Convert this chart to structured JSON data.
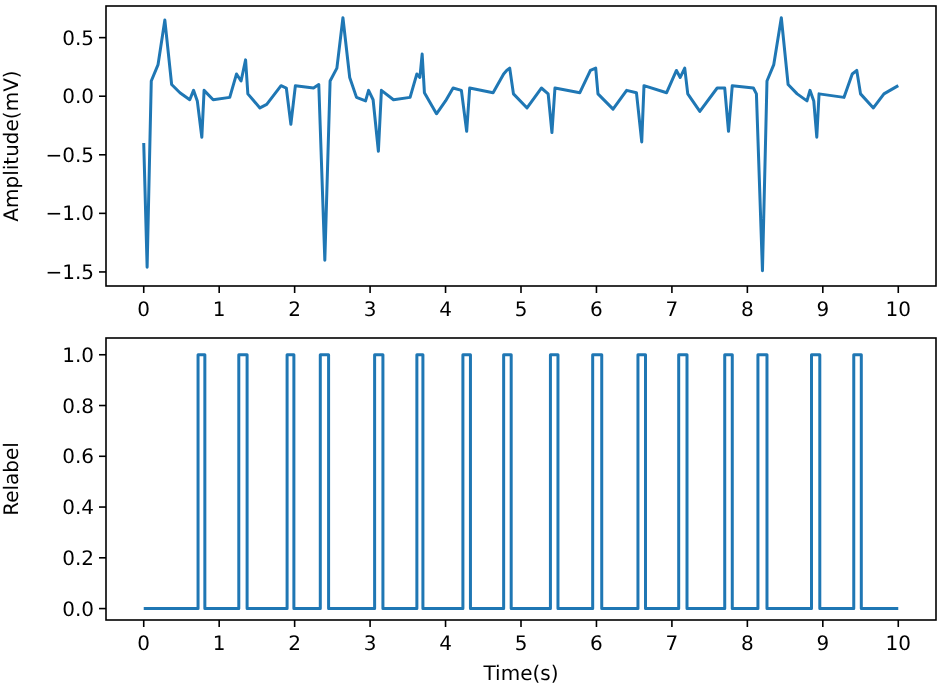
{
  "chart_data": [
    {
      "type": "line",
      "ylabel": "Amplitude(mV)",
      "xlim": [
        -0.5,
        10.5
      ],
      "ylim": [
        -1.62,
        0.77
      ],
      "xticks": [
        0,
        1,
        2,
        3,
        4,
        5,
        6,
        7,
        8,
        9,
        10
      ],
      "yticks": [
        {
          "value": 0.5,
          "label": "0.5"
        },
        {
          "value": 0,
          "label": "0.0"
        },
        {
          "value": -0.5,
          "label": "−0.5"
        },
        {
          "value": -1,
          "label": "−1.0"
        },
        {
          "value": -1.5,
          "label": "−1.5"
        }
      ],
      "grid": false,
      "series": [
        {
          "color": "#1f77b4",
          "x": [
            0,
            0.045,
            0.1,
            0.19,
            0.28,
            0.37,
            0.48,
            0.61,
            0.66,
            0.71,
            0.77,
            0.8,
            0.92,
            1.14,
            1.23,
            1.29,
            1.35,
            1.38,
            1.54,
            1.63,
            1.82,
            1.89,
            1.95,
            2.01,
            2.25,
            2.32,
            2.4,
            2.47,
            2.56,
            2.64,
            2.73,
            2.82,
            2.94,
            2.98,
            3.04,
            3.11,
            3.15,
            3.31,
            3.53,
            3.62,
            3.66,
            3.69,
            3.72,
            3.88,
            4.0,
            4.1,
            4.21,
            4.28,
            4.32,
            4.63,
            4.77,
            4.81,
            4.85,
            4.9,
            5.08,
            5.27,
            5.36,
            5.41,
            5.45,
            5.78,
            5.92,
            5.99,
            6.02,
            6.22,
            6.4,
            6.53,
            6.6,
            6.63,
            6.93,
            7.06,
            7.11,
            7.17,
            7.21,
            7.37,
            7.6,
            7.7,
            7.75,
            7.8,
            8.08,
            8.12,
            8.2,
            8.26,
            8.35,
            8.45,
            8.54,
            8.66,
            8.79,
            8.83,
            8.88,
            8.92,
            8.95,
            9.28,
            9.39,
            9.45,
            9.5,
            9.67,
            9.81,
            9.89,
            10.0
          ],
          "values": [
            -0.4,
            -1.46,
            0.13,
            0.27,
            0.65,
            0.1,
            0.03,
            -0.03,
            0.05,
            -0.04,
            -0.35,
            0.05,
            -0.03,
            -0.01,
            0.19,
            0.13,
            0.31,
            0.02,
            -0.1,
            -0.07,
            0.09,
            0.07,
            -0.24,
            0.09,
            0.07,
            0.1,
            -1.4,
            0.13,
            0.24,
            0.67,
            0.16,
            -0.01,
            -0.04,
            0.05,
            -0.03,
            -0.47,
            0.05,
            -0.03,
            -0.01,
            0.19,
            0.16,
            0.36,
            0.03,
            -0.15,
            -0.04,
            0.07,
            0.05,
            -0.3,
            0.07,
            0.03,
            0.19,
            0.22,
            0.24,
            0.02,
            -0.1,
            0.07,
            0.02,
            -0.31,
            0.07,
            0.03,
            0.22,
            0.24,
            0.02,
            -0.11,
            0.05,
            0.03,
            -0.39,
            0.09,
            0.03,
            0.22,
            0.16,
            0.24,
            0.02,
            -0.13,
            0.07,
            0.07,
            -0.3,
            0.09,
            0.07,
            0.02,
            -1.49,
            0.13,
            0.27,
            0.67,
            0.1,
            0.02,
            -0.04,
            0.05,
            -0.04,
            -0.35,
            0.02,
            -0.01,
            0.19,
            0.22,
            0.02,
            -0.1,
            0.02,
            0.05,
            0.09
          ]
        }
      ]
    },
    {
      "type": "line",
      "xlabel": "Time(s)",
      "ylabel": "Relabel",
      "xlim": [
        -0.5,
        10.5
      ],
      "ylim": [
        -0.045,
        1.066
      ],
      "xticks": [
        0,
        1,
        2,
        3,
        4,
        5,
        6,
        7,
        8,
        9,
        10
      ],
      "yticks": [
        {
          "value": 0,
          "label": "0.0"
        },
        {
          "value": 0.2,
          "label": "0.2"
        },
        {
          "value": 0.4,
          "label": "0.4"
        },
        {
          "value": 0.6,
          "label": "0.6"
        },
        {
          "value": 0.8,
          "label": "0.8"
        },
        {
          "value": 1,
          "label": "1.0"
        }
      ],
      "grid": false,
      "series": [
        {
          "color": "#1f77b4",
          "x": [
            0,
            0.72,
            0.72,
            0.81,
            0.81,
            1.26,
            1.26,
            1.37,
            1.37,
            1.9,
            1.9,
            1.99,
            1.99,
            2.34,
            2.34,
            2.45,
            2.45,
            3.06,
            3.06,
            3.17,
            3.17,
            3.62,
            3.62,
            3.7,
            3.7,
            4.23,
            4.23,
            4.33,
            4.33,
            4.77,
            4.77,
            4.87,
            4.87,
            5.39,
            5.39,
            5.49,
            5.49,
            5.95,
            5.95,
            6.07,
            6.07,
            6.55,
            6.55,
            6.65,
            6.65,
            7.09,
            7.09,
            7.2,
            7.2,
            7.7,
            7.7,
            7.8,
            7.8,
            8.14,
            8.14,
            8.26,
            8.26,
            8.85,
            8.85,
            8.96,
            8.96,
            9.41,
            9.41,
            9.51,
            9.51,
            10
          ],
          "values": [
            0,
            0,
            1,
            1,
            0,
            0,
            1,
            1,
            0,
            0,
            1,
            1,
            0,
            0,
            1,
            1,
            0,
            0,
            1,
            1,
            0,
            0,
            1,
            1,
            0,
            0,
            1,
            1,
            0,
            0,
            1,
            1,
            0,
            0,
            1,
            1,
            0,
            0,
            1,
            1,
            0,
            0,
            1,
            1,
            0,
            0,
            1,
            1,
            0,
            0,
            1,
            1,
            0,
            0,
            1,
            1,
            0,
            0,
            1,
            1,
            0,
            0,
            1,
            1,
            0,
            0
          ]
        }
      ]
    }
  ]
}
